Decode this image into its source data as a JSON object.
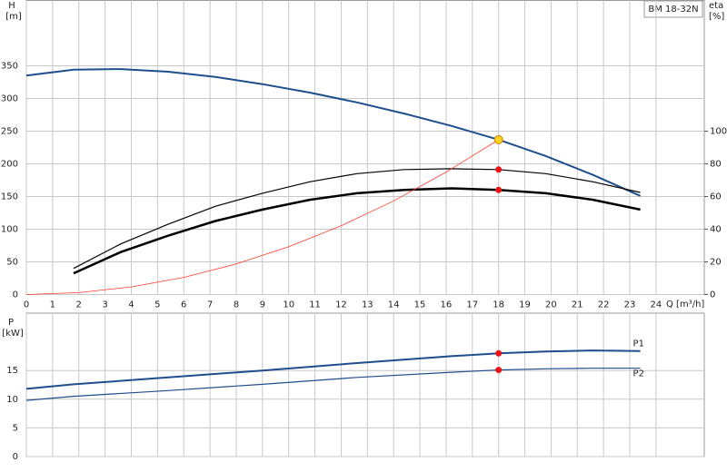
{
  "chart_data": [
    {
      "type": "line",
      "pump_label": "BM  18-32N",
      "ylabel": [
        "H",
        "[m]"
      ],
      "y2label": [
        "eta",
        "[%]"
      ],
      "xlabel": "Q [m³/h]",
      "xlim": [
        0,
        25.84
      ],
      "xticks": [
        0,
        1,
        2,
        3,
        4,
        5,
        6,
        7,
        8,
        9,
        10,
        11,
        12,
        13,
        14,
        15,
        16,
        17,
        18,
        19,
        20,
        21,
        22,
        23,
        24
      ],
      "ylim": [
        0,
        450
      ],
      "yticks": [
        0,
        50,
        100,
        150,
        200,
        250,
        300,
        350
      ],
      "y2lim": [
        0,
        180
      ],
      "y2ticks": [
        0,
        20,
        40,
        60,
        80,
        100
      ],
      "grid": true,
      "series": [
        {
          "color": "#1f4e8c",
          "width": 2,
          "x": [
            0,
            1.8,
            3.6,
            5.4,
            7.2,
            9,
            10.8,
            12.6,
            14.4,
            16.2,
            18,
            19.8,
            21.6,
            23.4
          ],
          "values": [
            335,
            344,
            345,
            341,
            333,
            322,
            309,
            294,
            277,
            258,
            237,
            212,
            183,
            151
          ]
        },
        {
          "color": "#000000",
          "width": 1.2,
          "axis": "y2",
          "x": [
            1.8,
            3.6,
            5.4,
            7.2,
            9,
            10.8,
            12.6,
            14.4,
            16.2,
            18,
            19.8,
            21.6,
            23.4
          ],
          "values": [
            16,
            31,
            43,
            54,
            62,
            69,
            74,
            76.5,
            77,
            76.5,
            74,
            69,
            62.5
          ]
        },
        {
          "color": "#000000",
          "width": 2.5,
          "axis": "y2",
          "x": [
            1.8,
            3.6,
            5.4,
            7.2,
            9,
            10.8,
            12.6,
            14.4,
            16.2,
            18,
            19.8,
            21.6,
            23.4
          ],
          "values": [
            13,
            26,
            36,
            45,
            52,
            58,
            62,
            64,
            65,
            64,
            62,
            58,
            52
          ]
        },
        {
          "color": "#ff3b30",
          "width": 0.8,
          "x": [
            0,
            2,
            4,
            6,
            8,
            10,
            12,
            14,
            16,
            18
          ],
          "values": [
            0,
            2.9,
            11.7,
            26.3,
            46.8,
            73.1,
            105.3,
            143.4,
            187.3,
            237
          ]
        }
      ],
      "duty_points": [
        {
          "x": 18,
          "y": 237,
          "color": "#ffd21f"
        },
        {
          "x": 18,
          "y": 76.5,
          "axis": "y2",
          "color": "#ee1111"
        },
        {
          "x": 18,
          "y": 64,
          "axis": "y2",
          "color": "#ee1111"
        }
      ]
    },
    {
      "type": "line",
      "ylabel": [
        "P",
        "[kW]"
      ],
      "xlim": [
        0,
        25.84
      ],
      "xticks": [
        0,
        1,
        2,
        3,
        4,
        5,
        6,
        7,
        8,
        9,
        10,
        11,
        12,
        13,
        14,
        15,
        16,
        17,
        18,
        19,
        20,
        21,
        22,
        23,
        24
      ],
      "ylim": [
        0,
        25
      ],
      "yticks": [
        0,
        5,
        10,
        15
      ],
      "grid": true,
      "series": [
        {
          "name": "P1",
          "color": "#1f4e8c",
          "width": 2,
          "x": [
            0,
            1.8,
            5.4,
            9,
            12.6,
            16.2,
            18,
            19.8,
            21.6,
            23.4
          ],
          "values": [
            11.8,
            12.6,
            13.8,
            15,
            16.3,
            17.5,
            18,
            18.3,
            18.5,
            18.4
          ]
        },
        {
          "name": "P2",
          "color": "#1f4e8c",
          "width": 1.2,
          "x": [
            0,
            1.8,
            5.4,
            9,
            12.6,
            16.2,
            18,
            19.8,
            21.6,
            23.4
          ],
          "values": [
            9.8,
            10.5,
            11.5,
            12.6,
            13.8,
            14.7,
            15.1,
            15.3,
            15.4,
            15.4
          ]
        }
      ],
      "duty_points": [
        {
          "x": 18,
          "y": 18,
          "color": "#ee1111"
        },
        {
          "x": 18,
          "y": 15.1,
          "color": "#ee1111"
        }
      ]
    }
  ]
}
